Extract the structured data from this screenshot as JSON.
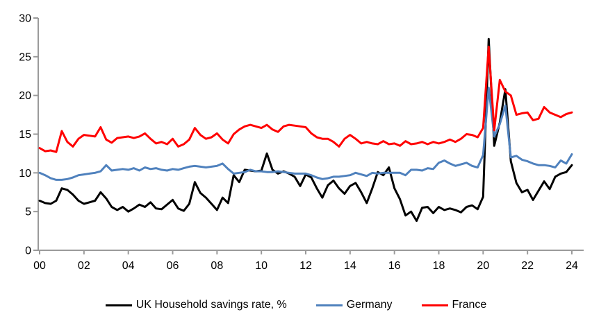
{
  "chart_data": {
    "type": "line",
    "title": "",
    "xlabel": "",
    "ylabel": "",
    "ylim": [
      0,
      30
    ],
    "y_ticks": [
      0,
      5,
      10,
      15,
      20,
      25,
      30
    ],
    "x_tick_labels": [
      "00",
      "02",
      "04",
      "06",
      "08",
      "10",
      "12",
      "14",
      "16",
      "18",
      "20",
      "22",
      "24"
    ],
    "x_start": 2000.0,
    "x_step_years": 0.25,
    "frequency": "quarterly",
    "grid": "off",
    "legend_position": "bottom",
    "axis_color": "#9a9a9a",
    "series": [
      {
        "name": "UK Household savings rate, %",
        "color": "#000000",
        "values": [
          6.4,
          6.1,
          6.0,
          6.4,
          8.0,
          7.8,
          7.2,
          6.4,
          6.0,
          6.2,
          6.4,
          7.5,
          6.7,
          5.6,
          5.2,
          5.6,
          5.0,
          5.4,
          5.9,
          5.6,
          6.2,
          5.4,
          5.3,
          5.9,
          6.5,
          5.4,
          5.1,
          6.0,
          8.8,
          7.4,
          6.8,
          6.0,
          5.2,
          6.8,
          6.1,
          9.7,
          8.8,
          10.4,
          10.3,
          10.2,
          10.3,
          12.5,
          10.4,
          9.9,
          10.2,
          9.9,
          9.5,
          8.3,
          9.8,
          9.4,
          8.0,
          6.8,
          8.4,
          9.0,
          8.0,
          7.3,
          8.3,
          8.7,
          7.5,
          6.1,
          8.0,
          10.1,
          9.7,
          10.7,
          8.0,
          6.6,
          4.5,
          5.0,
          3.8,
          5.5,
          5.6,
          4.8,
          5.6,
          5.2,
          5.4,
          5.2,
          4.9,
          5.6,
          5.8,
          5.3,
          6.9,
          27.3,
          13.5,
          16.5,
          20.8,
          11.5,
          8.7,
          7.5,
          7.8,
          6.5,
          7.7,
          8.9,
          7.9,
          9.5,
          9.9,
          10.1,
          11.0
        ]
      },
      {
        "name": "Germany",
        "color": "#4F81BD",
        "values": [
          10.0,
          9.7,
          9.3,
          9.1,
          9.1,
          9.2,
          9.4,
          9.7,
          9.8,
          9.9,
          10.0,
          10.2,
          11.0,
          10.3,
          10.4,
          10.5,
          10.4,
          10.6,
          10.3,
          10.7,
          10.5,
          10.6,
          10.4,
          10.3,
          10.5,
          10.4,
          10.6,
          10.8,
          10.9,
          10.8,
          10.7,
          10.8,
          10.9,
          11.2,
          10.5,
          9.9,
          10.0,
          10.1,
          10.4,
          10.2,
          10.2,
          10.1,
          10.1,
          10.2,
          10.1,
          10.0,
          9.9,
          9.9,
          9.9,
          9.7,
          9.4,
          9.2,
          9.3,
          9.5,
          9.5,
          9.6,
          9.7,
          10.0,
          9.8,
          9.6,
          10.0,
          9.9,
          10.0,
          10.0,
          10.0,
          10.0,
          9.7,
          10.4,
          10.4,
          10.3,
          10.6,
          10.5,
          11.3,
          11.6,
          11.2,
          10.9,
          11.1,
          11.3,
          10.9,
          10.7,
          12.3,
          21.0,
          14.7,
          16.3,
          18.7,
          12.0,
          12.2,
          11.7,
          11.5,
          11.2,
          11.0,
          11.0,
          10.9,
          10.7,
          11.6,
          11.2,
          12.4
        ]
      },
      {
        "name": "France",
        "color": "#FF0000",
        "values": [
          13.2,
          12.8,
          12.9,
          12.7,
          15.4,
          14.0,
          13.4,
          14.4,
          14.9,
          14.8,
          14.7,
          15.9,
          14.3,
          13.9,
          14.5,
          14.6,
          14.7,
          14.5,
          14.7,
          15.1,
          14.4,
          13.8,
          14.0,
          13.7,
          14.4,
          13.4,
          13.7,
          14.3,
          15.8,
          14.9,
          14.4,
          14.6,
          15.1,
          14.3,
          13.8,
          15.0,
          15.6,
          16.0,
          16.2,
          16.0,
          15.8,
          16.2,
          15.6,
          15.3,
          16.0,
          16.2,
          16.1,
          16.0,
          15.9,
          15.1,
          14.6,
          14.4,
          14.4,
          14.0,
          13.4,
          14.4,
          14.9,
          14.4,
          13.8,
          14.0,
          13.8,
          13.7,
          14.1,
          13.7,
          13.8,
          13.5,
          14.1,
          13.7,
          13.8,
          14.0,
          13.7,
          14.0,
          13.8,
          14.0,
          14.3,
          14.0,
          14.4,
          15.0,
          14.9,
          14.6,
          15.8,
          26.3,
          15.5,
          22.0,
          20.5,
          20.0,
          17.5,
          17.7,
          17.8,
          16.8,
          17.0,
          18.5,
          17.8,
          17.5,
          17.2,
          17.6,
          17.8
        ]
      }
    ]
  }
}
